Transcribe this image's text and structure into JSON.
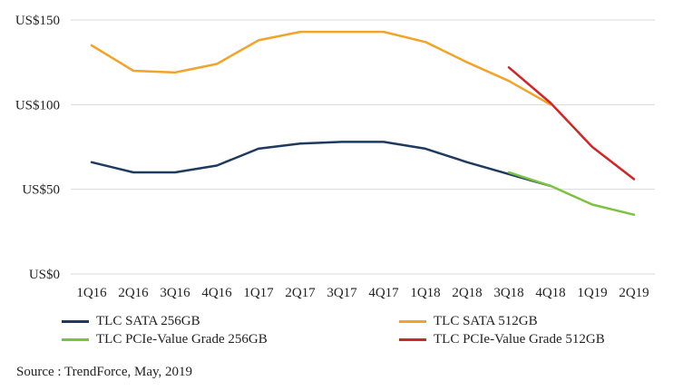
{
  "chart_data": {
    "type": "line",
    "categories": [
      "1Q16",
      "2Q16",
      "3Q16",
      "4Q16",
      "1Q17",
      "2Q17",
      "3Q17",
      "4Q17",
      "1Q18",
      "2Q18",
      "3Q18",
      "4Q18",
      "1Q19",
      "2Q19"
    ],
    "y_ticks": [
      {
        "value": 0,
        "label": "US$0"
      },
      {
        "value": 50,
        "label": "US$50"
      },
      {
        "value": 100,
        "label": "US$100"
      },
      {
        "value": 150,
        "label": "US$150"
      }
    ],
    "ylim": [
      0,
      150
    ],
    "grid": true,
    "legend_position": "bottom",
    "series": [
      {
        "name": "TLC SATA 256GB",
        "color": "#1f3a5f",
        "values": [
          66,
          60,
          60,
          64,
          74,
          77,
          78,
          78,
          74,
          66,
          59,
          52,
          null,
          null
        ]
      },
      {
        "name": "TLC SATA 512GB",
        "color": "#f2a32a",
        "values": [
          135,
          120,
          119,
          124,
          138,
          143,
          143,
          143,
          137,
          125,
          114,
          100,
          null,
          null
        ]
      },
      {
        "name": "TLC PCIe-Value Grade 256GB",
        "color": "#7cc242",
        "values": [
          null,
          null,
          null,
          null,
          null,
          null,
          null,
          null,
          null,
          null,
          60,
          52,
          41,
          35
        ]
      },
      {
        "name": "TLC PCIe-Value Grade 512GB",
        "color": "#d42424",
        "values": [
          null,
          null,
          null,
          null,
          null,
          null,
          null,
          null,
          null,
          null,
          122,
          101,
          75,
          56
        ]
      }
    ]
  },
  "source": "Source : TrendForce, May, 2019"
}
